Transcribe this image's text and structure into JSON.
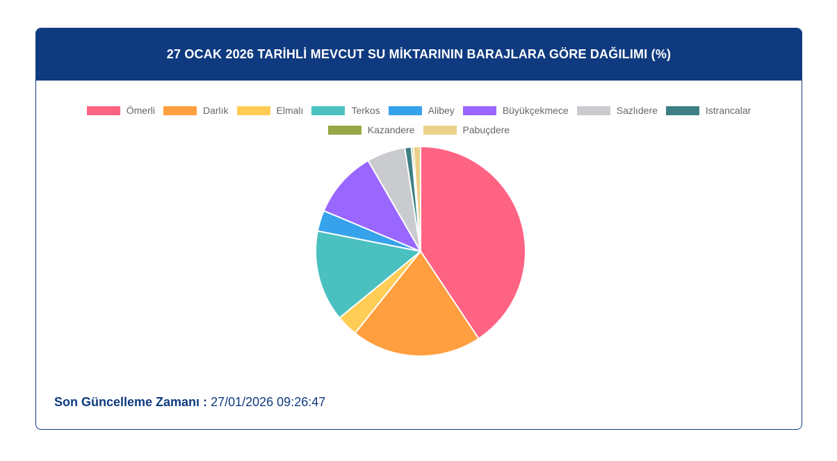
{
  "header": {
    "title": "27 OCAK 2026 TARİHLİ MEVCUT SU MİKTARININ BARAJLARA GÖRE DAĞILIMI (%)"
  },
  "chart_data": {
    "type": "pie",
    "categories": [
      "Ömerli",
      "Darlık",
      "Elmalı",
      "Terkos",
      "Alibey",
      "Büyükçekmece",
      "Sazlıdere",
      "Istrancalar",
      "Kazandere",
      "Pabuçdere"
    ],
    "values": [
      40.5,
      20.0,
      3.3,
      14.0,
      3.2,
      10.3,
      5.9,
      1.0,
      0.3,
      1.1
    ],
    "colors": [
      "#ff6384",
      "#ff9f40",
      "#ffcd56",
      "#4bc0c0",
      "#36a2eb",
      "#9966ff",
      "#c9cbcf",
      "#3e7f83",
      "#98a645",
      "#ecd08a"
    ],
    "title": "27 OCAK 2026 TARİHLİ MEVCUT SU MİKTARININ BARAJLARA GÖRE DAĞILIMI (%)",
    "legend_position": "top"
  },
  "footer": {
    "label": "Son Güncelleme Zamanı :",
    "value": "27/01/2026 09:26:47"
  }
}
